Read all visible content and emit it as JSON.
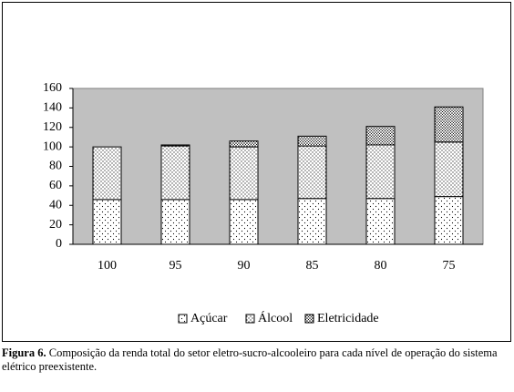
{
  "chart_data": {
    "type": "stacked-bar",
    "categories": [
      "100",
      "95",
      "90",
      "85",
      "80",
      "75"
    ],
    "series": [
      {
        "name": "Açúcar",
        "values": [
          46,
          46,
          46,
          47,
          47,
          49
        ]
      },
      {
        "name": "Álcool",
        "values": [
          54,
          55,
          54,
          54,
          55,
          56
        ]
      },
      {
        "name": "Eletricidade",
        "values": [
          0,
          1,
          6,
          10,
          19,
          36
        ]
      }
    ],
    "ylim": [
      0,
      160
    ],
    "yticks": [
      0,
      20,
      40,
      60,
      80,
      100,
      120,
      140,
      160
    ],
    "grid": false,
    "legend": "bottom"
  },
  "caption": {
    "label": "Figura 6.",
    "text": "Composição da renda total do setor eletro-sucro-alcooleiro para cada nível de operação do sistema elétrico preexistente."
  }
}
